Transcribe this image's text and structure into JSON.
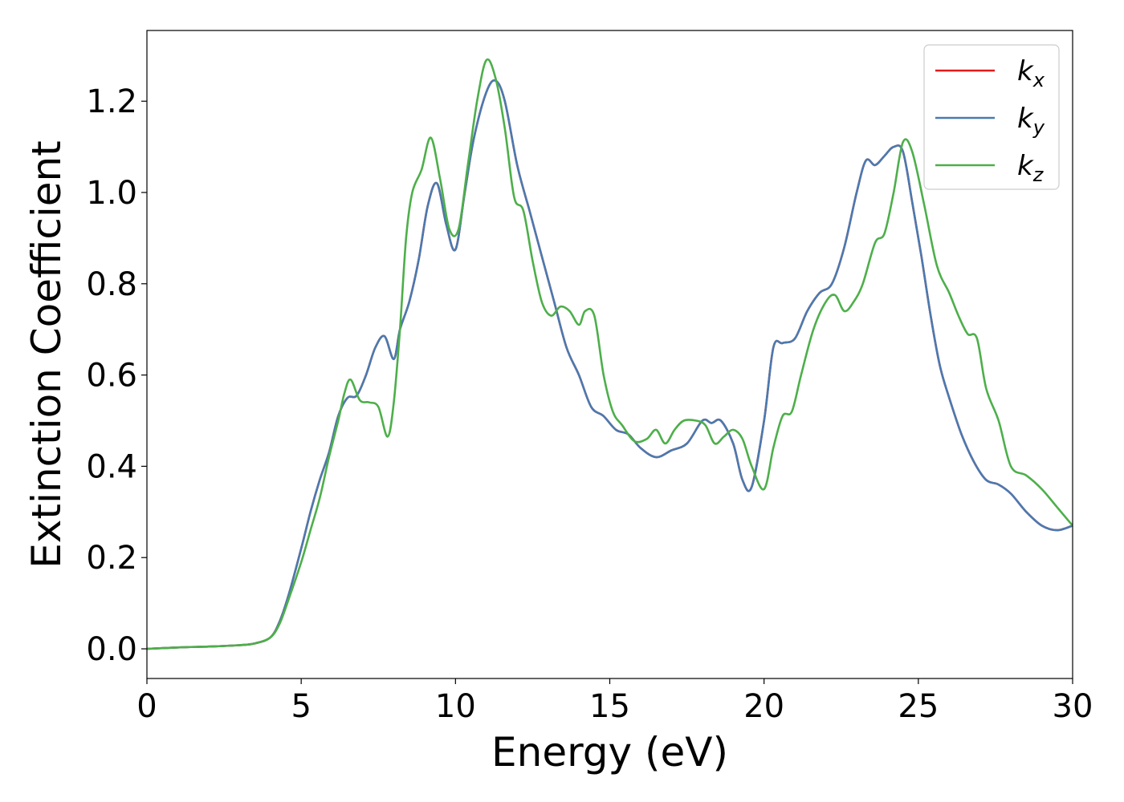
{
  "chart_data": {
    "type": "line",
    "xlabel": "Energy (eV)",
    "ylabel": "Extinction Coefficient",
    "xlim": [
      0,
      30
    ],
    "ylim": [
      -0.065,
      1.355
    ],
    "xticks": [
      0,
      5,
      10,
      15,
      20,
      25,
      30
    ],
    "xtick_labels": [
      "0",
      "5",
      "10",
      "15",
      "20",
      "25",
      "30"
    ],
    "yticks": [
      0.0,
      0.2,
      0.4,
      0.6,
      0.8,
      1.0,
      1.2
    ],
    "ytick_labels": [
      "0.0",
      "0.2",
      "0.4",
      "0.6",
      "0.8",
      "1.0",
      "1.2"
    ],
    "grid": false,
    "legend_position": "top-right",
    "series": [
      {
        "name": "k",
        "subscript": "x",
        "color": "#e41a1c",
        "x": [
          0,
          1,
          2,
          3,
          3.5,
          4,
          4.3,
          4.6,
          5,
          5.3,
          5.6,
          5.9,
          6.2,
          6.5,
          6.8,
          7.1,
          7.4,
          7.7,
          8,
          8.2,
          8.5,
          8.8,
          9.1,
          9.4,
          9.7,
          10,
          10.3,
          10.6,
          11,
          11.3,
          11.6,
          12,
          12.4,
          12.8,
          13.2,
          13.6,
          14,
          14.4,
          14.8,
          15.2,
          15.6,
          16,
          16.5,
          17,
          17.5,
          18,
          18.3,
          18.6,
          19,
          19.3,
          19.6,
          20,
          20.3,
          20.6,
          21,
          21.4,
          21.8,
          22.2,
          22.6,
          23,
          23.3,
          23.6,
          23.9,
          24.2,
          24.5,
          24.8,
          25.1,
          25.4,
          25.7,
          26,
          26.4,
          26.8,
          27.2,
          27.6,
          28,
          28.5,
          29,
          29.5,
          30
        ],
        "y": [
          0,
          0.003,
          0.005,
          0.008,
          0.012,
          0.025,
          0.06,
          0.12,
          0.22,
          0.3,
          0.37,
          0.43,
          0.51,
          0.55,
          0.555,
          0.6,
          0.66,
          0.685,
          0.635,
          0.7,
          0.76,
          0.85,
          0.97,
          1.02,
          0.93,
          0.875,
          1.0,
          1.12,
          1.22,
          1.245,
          1.2,
          1.06,
          0.96,
          0.86,
          0.76,
          0.66,
          0.6,
          0.53,
          0.51,
          0.48,
          0.47,
          0.44,
          0.42,
          0.435,
          0.45,
          0.5,
          0.495,
          0.5,
          0.45,
          0.37,
          0.355,
          0.5,
          0.66,
          0.67,
          0.68,
          0.74,
          0.78,
          0.8,
          0.88,
          1.0,
          1.07,
          1.06,
          1.08,
          1.1,
          1.09,
          0.98,
          0.86,
          0.73,
          0.62,
          0.55,
          0.47,
          0.41,
          0.37,
          0.36,
          0.34,
          0.3,
          0.27,
          0.26,
          0.27
        ]
      },
      {
        "name": "k",
        "subscript": "y",
        "color": "#4a7ab0",
        "x": [
          0,
          1,
          2,
          3,
          3.5,
          4,
          4.3,
          4.6,
          5,
          5.3,
          5.6,
          5.9,
          6.2,
          6.5,
          6.8,
          7.1,
          7.4,
          7.7,
          8,
          8.2,
          8.5,
          8.8,
          9.1,
          9.4,
          9.7,
          10,
          10.3,
          10.6,
          11,
          11.3,
          11.6,
          12,
          12.4,
          12.8,
          13.2,
          13.6,
          14,
          14.4,
          14.8,
          15.2,
          15.6,
          16,
          16.5,
          17,
          17.5,
          18,
          18.3,
          18.6,
          19,
          19.3,
          19.6,
          20,
          20.3,
          20.6,
          21,
          21.4,
          21.8,
          22.2,
          22.6,
          23,
          23.3,
          23.6,
          23.9,
          24.2,
          24.5,
          24.8,
          25.1,
          25.4,
          25.7,
          26,
          26.4,
          26.8,
          27.2,
          27.6,
          28,
          28.5,
          29,
          29.5,
          30
        ],
        "y": [
          0,
          0.003,
          0.005,
          0.008,
          0.012,
          0.025,
          0.06,
          0.12,
          0.22,
          0.3,
          0.37,
          0.43,
          0.51,
          0.55,
          0.555,
          0.6,
          0.66,
          0.685,
          0.635,
          0.7,
          0.76,
          0.85,
          0.97,
          1.02,
          0.93,
          0.875,
          1.0,
          1.12,
          1.22,
          1.245,
          1.2,
          1.06,
          0.96,
          0.86,
          0.76,
          0.66,
          0.6,
          0.53,
          0.51,
          0.48,
          0.47,
          0.44,
          0.42,
          0.435,
          0.45,
          0.5,
          0.495,
          0.5,
          0.45,
          0.37,
          0.355,
          0.5,
          0.66,
          0.67,
          0.68,
          0.74,
          0.78,
          0.8,
          0.88,
          1.0,
          1.07,
          1.06,
          1.08,
          1.1,
          1.09,
          0.98,
          0.86,
          0.73,
          0.62,
          0.55,
          0.47,
          0.41,
          0.37,
          0.36,
          0.34,
          0.3,
          0.27,
          0.26,
          0.27
        ]
      },
      {
        "name": "k",
        "subscript": "z",
        "color": "#4daf4a",
        "x": [
          0,
          1,
          2,
          3,
          3.5,
          4,
          4.3,
          4.6,
          5,
          5.3,
          5.6,
          5.9,
          6.2,
          6.4,
          6.6,
          6.9,
          7.2,
          7.5,
          7.8,
          8,
          8.2,
          8.4,
          8.6,
          8.9,
          9.2,
          9.5,
          9.8,
          10.1,
          10.4,
          10.7,
          11,
          11.3,
          11.6,
          11.9,
          12.2,
          12.5,
          12.8,
          13.1,
          13.4,
          13.7,
          14,
          14.2,
          14.5,
          14.8,
          15.1,
          15.4,
          15.8,
          16.2,
          16.5,
          16.8,
          17.1,
          17.4,
          17.8,
          18.1,
          18.4,
          18.7,
          19,
          19.3,
          19.6,
          20,
          20.3,
          20.6,
          20.9,
          21.2,
          21.6,
          22,
          22.3,
          22.6,
          22.9,
          23.2,
          23.6,
          23.9,
          24.2,
          24.5,
          24.8,
          25.2,
          25.6,
          26,
          26.3,
          26.6,
          26.9,
          27.2,
          27.6,
          28,
          28.5,
          29,
          29.5,
          30
        ],
        "y": [
          0,
          0.003,
          0.005,
          0.008,
          0.012,
          0.025,
          0.055,
          0.11,
          0.19,
          0.26,
          0.33,
          0.42,
          0.5,
          0.56,
          0.59,
          0.545,
          0.54,
          0.53,
          0.465,
          0.54,
          0.7,
          0.9,
          1.0,
          1.05,
          1.12,
          1.03,
          0.92,
          0.92,
          1.06,
          1.2,
          1.29,
          1.25,
          1.14,
          0.99,
          0.96,
          0.85,
          0.76,
          0.73,
          0.75,
          0.74,
          0.71,
          0.74,
          0.73,
          0.6,
          0.52,
          0.49,
          0.455,
          0.46,
          0.48,
          0.45,
          0.48,
          0.5,
          0.5,
          0.49,
          0.45,
          0.465,
          0.48,
          0.46,
          0.4,
          0.35,
          0.44,
          0.51,
          0.52,
          0.6,
          0.7,
          0.76,
          0.775,
          0.74,
          0.76,
          0.8,
          0.89,
          0.91,
          1.0,
          1.11,
          1.09,
          0.97,
          0.84,
          0.78,
          0.73,
          0.69,
          0.68,
          0.57,
          0.5,
          0.4,
          0.38,
          0.35,
          0.31,
          0.27
        ]
      }
    ]
  }
}
